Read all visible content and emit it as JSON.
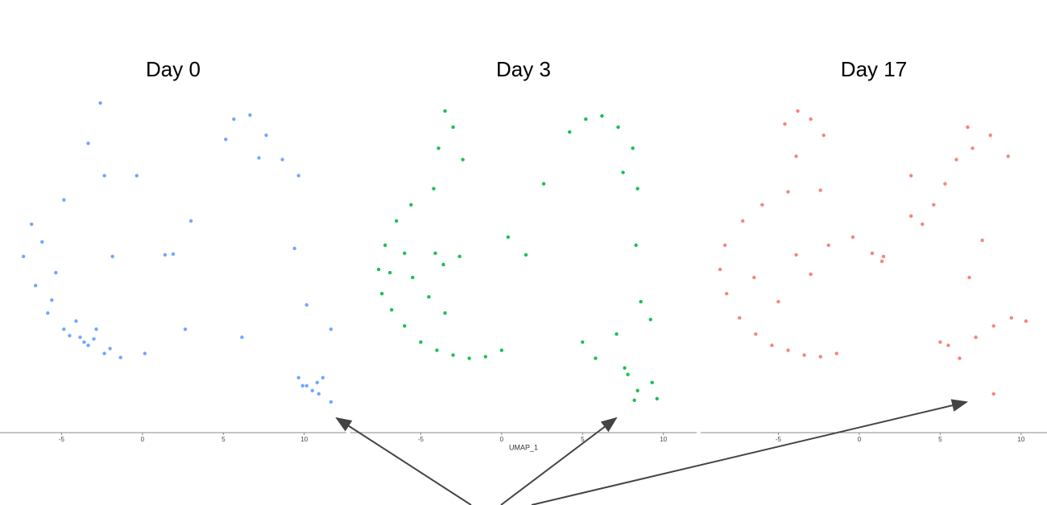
{
  "chart_data": [
    {
      "type": "scatter",
      "title": "Day 0",
      "color": "#619cff",
      "xlim": [
        -8.8,
        12.6
      ],
      "ylim": [
        0,
        21
      ],
      "xticks": [
        -5,
        0,
        5,
        10
      ],
      "x": [
        -2.6,
        -3.35,
        -2.35,
        -4.85,
        -6.85,
        -7.35,
        -6.6,
        -5.85,
        -4.85,
        -3.85,
        -3.35,
        -2.35,
        -1.35,
        0.15,
        -4.1,
        -2.85,
        -5.35,
        -1.85,
        1.4,
        1.9,
        5.65,
        6.65,
        7.65,
        8.65,
        9.65,
        5.15,
        9.4,
        10.15,
        11.65,
        10.15,
        10.9,
        11.65,
        9.65,
        11.15,
        6.15,
        2.65,
        -0.35,
        -3.6,
        -4.5,
        -3.0,
        -2.0,
        -5.6,
        -6.2,
        10.5,
        9.9,
        10.8,
        3.0,
        7.2
      ],
      "y": [
        20.4,
        17.9,
        15.9,
        14.4,
        12.9,
        10.9,
        9.1,
        7.4,
        6.4,
        5.9,
        5.4,
        4.9,
        4.65,
        4.9,
        6.9,
        6.4,
        9.9,
        10.9,
        11.0,
        11.05,
        19.4,
        19.65,
        18.4,
        16.9,
        15.9,
        18.15,
        11.4,
        7.9,
        6.4,
        2.9,
        2.4,
        1.9,
        3.4,
        3.4,
        5.9,
        6.4,
        15.9,
        5.6,
        6.0,
        5.8,
        5.2,
        8.2,
        11.8,
        2.6,
        2.9,
        3.1,
        13.1,
        17.0
      ]
    },
    {
      "type": "scatter",
      "title": "Day 3",
      "xlabel": "UMAP_1",
      "color": "#00ba38",
      "xlim": [
        -9.35,
        12.05
      ],
      "ylim": [
        0,
        21
      ],
      "xticks": [
        -5,
        0,
        5,
        10
      ],
      "x": [
        -3.5,
        -3.0,
        -3.9,
        -2.4,
        -4.2,
        -5.6,
        -6.5,
        -7.2,
        -7.6,
        -7.4,
        -6.8,
        -6.0,
        -5.0,
        -4.0,
        -3.0,
        -2.0,
        -1.0,
        0.0,
        -5.5,
        -4.5,
        -3.5,
        -6.0,
        -6.9,
        -4.1,
        -3.6,
        -2.6,
        0.4,
        1.5,
        4.2,
        5.2,
        6.2,
        7.2,
        8.1,
        7.5,
        8.4,
        8.3,
        8.6,
        5.8,
        7.1,
        9.2,
        7.8,
        8.4,
        9.3,
        9.6,
        7.6,
        8.2,
        5.0,
        2.6
      ],
      "y": [
        19.9,
        18.9,
        17.6,
        16.9,
        15.1,
        14.1,
        13.1,
        11.6,
        10.1,
        8.6,
        7.6,
        6.6,
        5.6,
        5.1,
        4.8,
        4.6,
        4.7,
        5.1,
        9.6,
        8.4,
        7.4,
        11.1,
        9.9,
        11.1,
        10.4,
        10.9,
        12.1,
        11.0,
        18.6,
        19.4,
        19.6,
        18.9,
        17.6,
        16.1,
        15.1,
        11.6,
        8.1,
        4.6,
        6.1,
        7.0,
        3.6,
        2.6,
        3.1,
        2.1,
        4.0,
        2.0,
        5.6,
        15.4
      ]
    },
    {
      "type": "scatter",
      "title": "Day 17",
      "color": "#f8766d",
      "xlim": [
        -9.8,
        11.6
      ],
      "ylim": [
        0,
        21
      ],
      "xticks": [
        -5,
        0,
        5,
        10
      ],
      "x": [
        -3.8,
        -4.6,
        -3.0,
        -2.2,
        -3.9,
        -2.4,
        -4.4,
        -6.0,
        -7.2,
        -8.3,
        -8.6,
        -8.2,
        -7.4,
        -6.4,
        -5.4,
        -4.4,
        -3.4,
        -2.4,
        -1.4,
        -6.5,
        -5.0,
        -3.9,
        -3.0,
        -1.9,
        -0.4,
        0.8,
        1.4,
        1.5,
        3.2,
        3.2,
        3.9,
        4.6,
        5.3,
        6.0,
        7.0,
        6.7,
        8.1,
        9.2,
        5.5,
        6.2,
        7.2,
        8.3,
        9.4,
        10.3,
        5.0,
        6.8,
        7.6,
        8.3
      ],
      "y": [
        19.9,
        19.1,
        19.4,
        18.4,
        17.1,
        15.0,
        14.9,
        14.1,
        13.1,
        11.6,
        10.1,
        8.6,
        7.1,
        6.1,
        5.4,
        5.1,
        4.8,
        4.7,
        4.9,
        9.6,
        8.1,
        11.0,
        9.8,
        11.6,
        12.1,
        11.1,
        10.6,
        10.9,
        15.9,
        13.4,
        12.9,
        14.1,
        15.4,
        16.9,
        17.6,
        18.9,
        18.4,
        17.1,
        5.4,
        4.6,
        5.9,
        6.6,
        7.1,
        6.9,
        5.6,
        9.6,
        11.9,
        2.4
      ]
    }
  ]
}
